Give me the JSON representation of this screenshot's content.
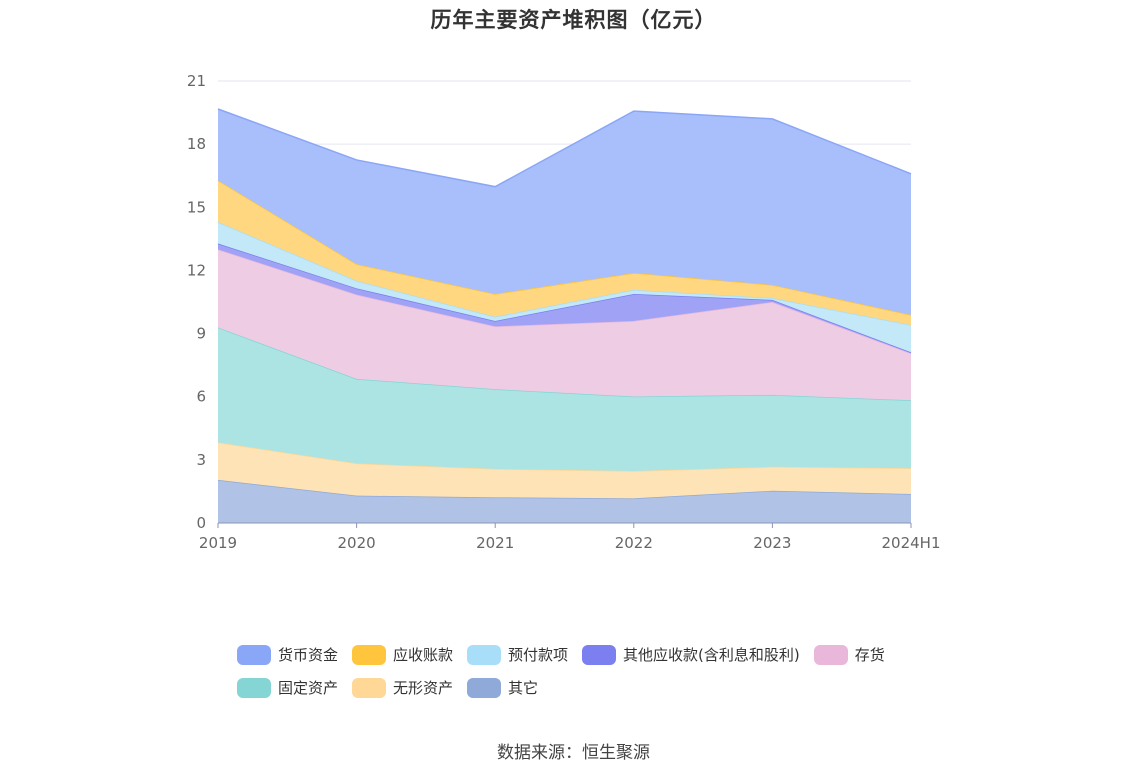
{
  "chart_data": {
    "type": "area",
    "stacked": true,
    "title": "历年主要资产堆积图（亿元）",
    "categories": [
      "2019",
      "2020",
      "2021",
      "2022",
      "2023",
      "2024H1"
    ],
    "y_ticks": [
      "0",
      "3",
      "6",
      "9",
      "12",
      "15",
      "18",
      "21"
    ],
    "ylim": [
      0,
      21
    ],
    "xlabel": "",
    "ylabel": "",
    "legend_position": "bottom",
    "series": [
      {
        "name": "其它",
        "color": "#8fa9d8",
        "fill": "#b0c3e6",
        "values": [
          2.05,
          1.3,
          1.22,
          1.17,
          1.53,
          1.38
        ]
      },
      {
        "name": "无形资产",
        "color": "#ffd796",
        "fill": "#fde3b6",
        "values": [
          1.78,
          1.53,
          1.35,
          1.3,
          1.14,
          1.22
        ]
      },
      {
        "name": "固定资产",
        "color": "#85d5d5",
        "fill": "#ace3e3",
        "values": [
          5.46,
          4.02,
          3.79,
          3.54,
          3.42,
          3.23
        ]
      },
      {
        "name": "存货",
        "color": "#e8b7da",
        "fill": "#eecde4",
        "values": [
          3.71,
          4.0,
          2.98,
          3.59,
          4.41,
          2.23
        ]
      },
      {
        "name": "其他应收款(含利息和股利)",
        "color": "#7b7ff0",
        "fill": "#a0a3f5",
        "values": [
          0.28,
          0.3,
          0.26,
          1.28,
          0.1,
          0.05
        ]
      },
      {
        "name": "预付款项",
        "color": "#a8def7",
        "fill": "#c3e8f7",
        "values": [
          1.02,
          0.36,
          0.2,
          0.2,
          0.09,
          1.3
        ]
      },
      {
        "name": "应收账款",
        "color": "#ffc53d",
        "fill": "#ffd780",
        "values": [
          1.98,
          0.79,
          1.08,
          0.8,
          0.62,
          0.48
        ]
      },
      {
        "name": "货币资金",
        "color": "#8aa6f7",
        "fill": "#a8bffc",
        "values": [
          3.39,
          4.95,
          5.1,
          7.69,
          7.89,
          6.7
        ]
      }
    ]
  },
  "legend": {
    "rows": [
      [
        {
          "label": "货币资金",
          "color": "#8aa6f7"
        },
        {
          "label": "应收账款",
          "color": "#ffc53d"
        },
        {
          "label": "预付款项",
          "color": "#a8def7"
        },
        {
          "label": "其他应收款(含利息和股利)",
          "color": "#7b7ff0"
        },
        {
          "label": "存货",
          "color": "#e8b7da"
        }
      ],
      [
        {
          "label": "固定资产",
          "color": "#85d5d5"
        },
        {
          "label": "无形资产",
          "color": "#ffd796"
        },
        {
          "label": "其它",
          "color": "#8fa9d8"
        }
      ]
    ]
  },
  "source": "数据来源：恒生聚源"
}
